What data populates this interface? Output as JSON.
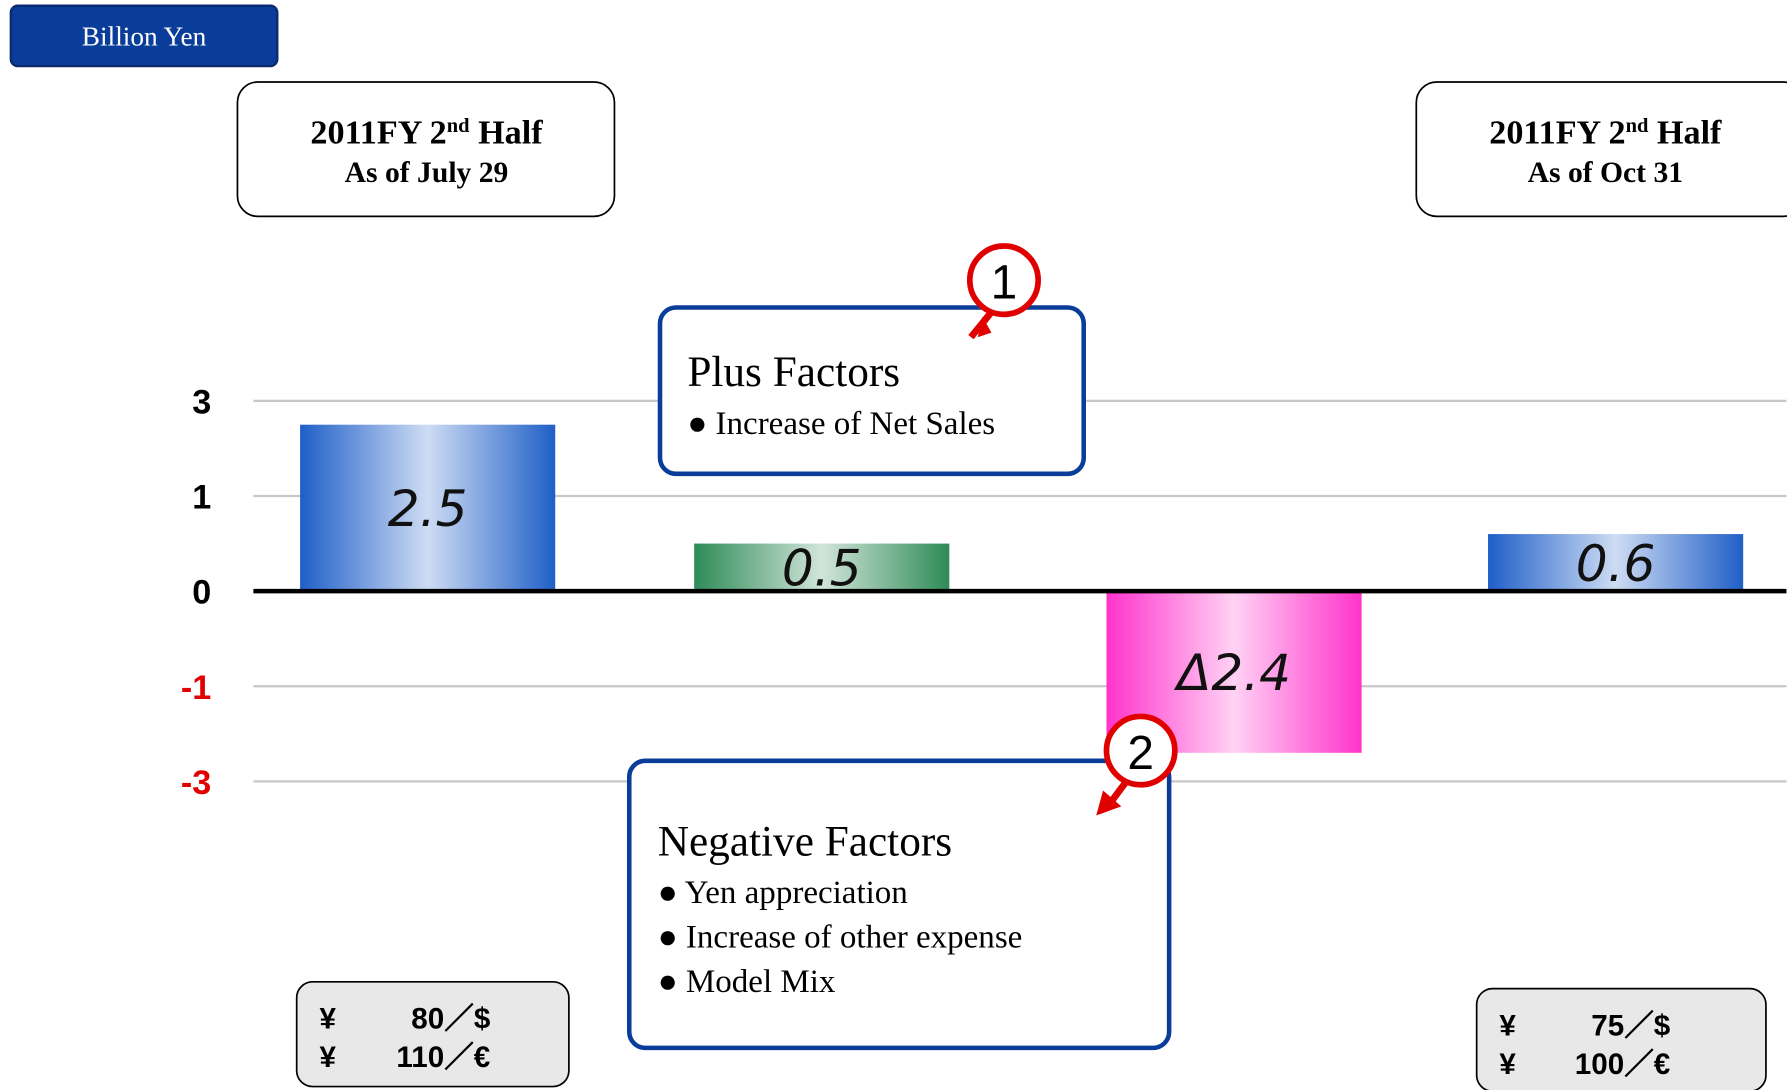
{
  "unit_badge": "Billion Yen",
  "headers": [
    {
      "main": "2011FY 2",
      "sup": "nd",
      "rest": " Half",
      "date": "As of July 29"
    },
    {
      "main": "2011FY 2",
      "sup": "nd",
      "rest": " Half",
      "date": "As of Oct 31"
    }
  ],
  "callouts": [
    {
      "number": "1",
      "title": "Plus Factors",
      "items": [
        "● Increase of Net Sales"
      ]
    },
    {
      "number": "2",
      "title": "Negative Factors",
      "items": [
        "● Yen appreciation",
        "● Increase of other expense",
        "● Model Mix"
      ]
    }
  ],
  "rates": [
    [
      {
        "sym": "¥",
        "rate": "80／$"
      },
      {
        "sym": "¥",
        "rate": "110／€"
      }
    ],
    [
      {
        "sym": "¥",
        "rate": "75／$"
      },
      {
        "sym": "¥",
        "rate": "100／€"
      }
    ]
  ],
  "chart_data": {
    "type": "bar",
    "categories": [
      null,
      null,
      null,
      null
    ],
    "values": [
      2.5,
      0.5,
      -2.4,
      0.6
    ],
    "value_labels": [
      "2.5",
      "0.5",
      "Δ2.4",
      "0.6"
    ],
    "colors": [
      "#1f5fc8",
      "#2e8b57",
      "#ff33cc",
      "#1f5fc8"
    ],
    "ylim": [
      -3,
      3
    ],
    "yticks": [
      3,
      1,
      0,
      -1,
      -3
    ],
    "grid": true,
    "negative_tick_color": "#e00000"
  }
}
